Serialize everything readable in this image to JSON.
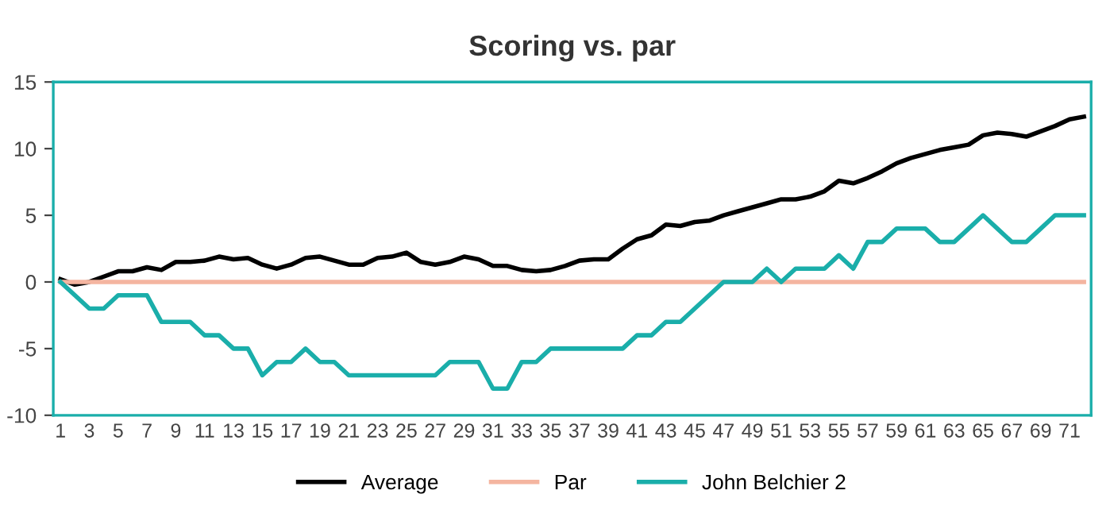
{
  "chart_data": {
    "type": "line",
    "title": "Scoring vs. par",
    "categories": [
      "1",
      null,
      "3",
      null,
      "5",
      null,
      "7",
      null,
      "9",
      null,
      "11",
      null,
      "13",
      null,
      "15",
      null,
      "17",
      null,
      "19",
      null,
      "21",
      null,
      "23",
      null,
      "25",
      null,
      "27",
      null,
      "29",
      null,
      "31",
      null,
      "33",
      null,
      "35",
      null,
      "37",
      null,
      "39",
      null,
      "41",
      null,
      "43",
      null,
      "45",
      null,
      "47",
      null,
      "49",
      null,
      "51",
      null,
      "53",
      null,
      "55",
      null,
      "57",
      null,
      "59",
      null,
      "61",
      null,
      "63",
      null,
      "65",
      null,
      "67",
      null,
      "69",
      null,
      "71",
      null
    ],
    "series": [
      {
        "name": "Average",
        "color": "#000000",
        "values": [
          0.2,
          -0.2,
          0,
          0.4,
          0.8,
          0.8,
          1.1,
          0.9,
          1.5,
          1.5,
          1.6,
          1.9,
          1.7,
          1.8,
          1.3,
          1.0,
          1.3,
          1.8,
          1.9,
          1.6,
          1.3,
          1.3,
          1.8,
          1.9,
          2.2,
          1.5,
          1.3,
          1.5,
          1.9,
          1.7,
          1.2,
          1.2,
          0.9,
          0.8,
          0.9,
          1.2,
          1.6,
          1.7,
          1.7,
          2.5,
          3.2,
          3.5,
          4.3,
          4.2,
          4.5,
          4.6,
          5.0,
          5.3,
          5.6,
          5.9,
          6.2,
          6.2,
          6.4,
          6.8,
          7.6,
          7.4,
          7.8,
          8.3,
          8.9,
          9.3,
          9.6,
          9.9,
          10.1,
          10.3,
          11.0,
          11.2,
          11.1,
          10.9,
          11.3,
          11.7,
          12.2,
          12.4
        ]
      },
      {
        "name": "Par",
        "color": "#f4b5a0",
        "values": [
          0,
          0,
          0,
          0,
          0,
          0,
          0,
          0,
          0,
          0,
          0,
          0,
          0,
          0,
          0,
          0,
          0,
          0,
          0,
          0,
          0,
          0,
          0,
          0,
          0,
          0,
          0,
          0,
          0,
          0,
          0,
          0,
          0,
          0,
          0,
          0,
          0,
          0,
          0,
          0,
          0,
          0,
          0,
          0,
          0,
          0,
          0,
          0,
          0,
          0,
          0,
          0,
          0,
          0,
          0,
          0,
          0,
          0,
          0,
          0,
          0,
          0,
          0,
          0,
          0,
          0,
          0,
          0,
          0,
          0,
          0,
          0
        ]
      },
      {
        "name": "John Belchier 2",
        "color": "#1aaeaa",
        "values": [
          0,
          -1,
          -2,
          -2,
          -1,
          -1,
          -1,
          -3,
          -3,
          -3,
          -4,
          -4,
          -5,
          -5,
          -7,
          -6,
          -6,
          -5,
          -6,
          -6,
          -7,
          -7,
          -7,
          -7,
          -7,
          -7,
          -7,
          -6,
          -6,
          -6,
          -8,
          -8,
          -6,
          -6,
          -5,
          -5,
          -5,
          -5,
          -5,
          -5,
          -4,
          -4,
          -3,
          -3,
          -2,
          -1,
          0,
          0,
          0,
          1,
          0,
          1,
          1,
          1,
          2,
          1,
          3,
          3,
          4,
          4,
          4,
          3,
          3,
          4,
          5,
          4,
          3,
          3,
          4,
          5,
          5,
          5
        ]
      }
    ],
    "ylim": [
      -10,
      15
    ],
    "yticks": [
      -10,
      -5,
      0,
      5,
      10,
      15
    ],
    "grid": false,
    "legend": "bottom",
    "marker": "none",
    "line_style": "solid"
  }
}
